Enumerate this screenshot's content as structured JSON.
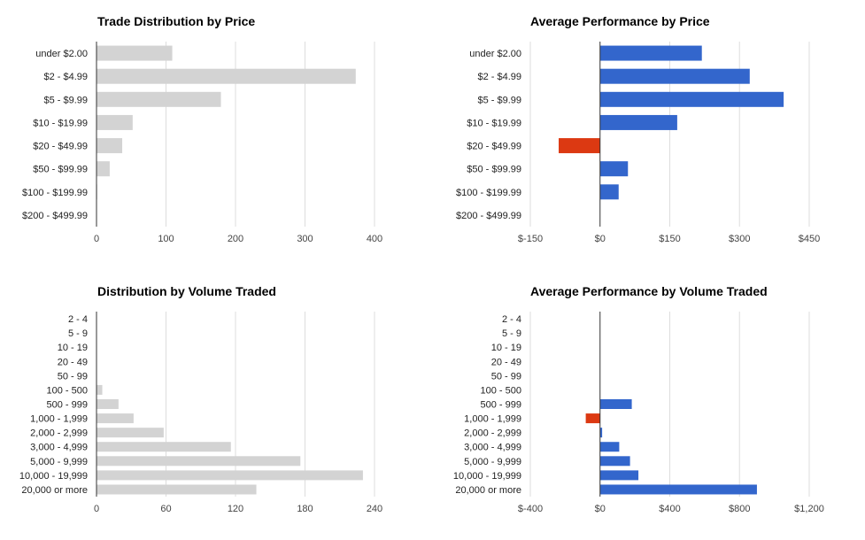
{
  "colors": {
    "neutral_bar": "#d3d3d3",
    "positive_bar": "#3366cc",
    "negative_bar": "#dc3912",
    "grid": "#dddddd",
    "axis": "#333333"
  },
  "chart_data": [
    {
      "type": "bar",
      "orientation": "horizontal",
      "title": "Trade Distribution by Price",
      "categories": [
        "under $2.00",
        "$2 - $4.99",
        "$5 - $9.99",
        "$10 - $19.99",
        "$20 - $49.99",
        "$50 - $99.99",
        "$100 - $199.99",
        "$200 - $499.99"
      ],
      "values": [
        109,
        373,
        179,
        52,
        37,
        19,
        1,
        0
      ],
      "xlim": [
        0,
        400
      ],
      "ticks": [
        0,
        100,
        200,
        300,
        400
      ],
      "tick_labels": [
        "0",
        "100",
        "200",
        "300",
        "400"
      ],
      "grid": true,
      "legend": "none"
    },
    {
      "type": "bar",
      "orientation": "horizontal",
      "title": "Average Performance by Price",
      "categories": [
        "under $2.00",
        "$2 - $4.99",
        "$5 - $9.99",
        "$10 - $19.99",
        "$20 - $49.99",
        "$50 - $99.99",
        "$100 - $199.99",
        "$200 - $499.99"
      ],
      "values": [
        219,
        322,
        395,
        166,
        -89,
        60,
        40,
        0
      ],
      "xlim": [
        -150,
        450
      ],
      "ticks": [
        -150,
        0,
        150,
        300,
        450
      ],
      "tick_labels": [
        "$-150",
        "$0",
        "$150",
        "$300",
        "$450"
      ],
      "grid": true,
      "legend": "none"
    },
    {
      "type": "bar",
      "orientation": "horizontal",
      "title": "Distribution by Volume Traded",
      "categories": [
        "2 - 4",
        "5 - 9",
        "10 - 19",
        "20 - 49",
        "50 - 99",
        "100 - 500",
        "500 - 999",
        "1,000 - 1,999",
        "2,000 - 2,999",
        "3,000 - 4,999",
        "5,000 - 9,999",
        "10,000 - 19,999",
        "20,000 or more"
      ],
      "values": [
        0,
        0,
        0,
        0,
        0,
        5,
        19,
        32,
        58,
        116,
        176,
        230,
        138
      ],
      "xlim": [
        0,
        240
      ],
      "ticks": [
        0,
        60,
        120,
        180,
        240
      ],
      "tick_labels": [
        "0",
        "60",
        "120",
        "180",
        "240"
      ],
      "grid": true,
      "legend": "none"
    },
    {
      "type": "bar",
      "orientation": "horizontal",
      "title": "Average Performance by Volume Traded",
      "categories": [
        "2 - 4",
        "5 - 9",
        "10 - 19",
        "20 - 49",
        "50 - 99",
        "100 - 500",
        "500 - 999",
        "1,000 - 1,999",
        "2,000 - 2,999",
        "3,000 - 4,999",
        "5,000 - 9,999",
        "10,000 - 19,999",
        "20,000 or more"
      ],
      "values": [
        0,
        0,
        0,
        0,
        0,
        0,
        182,
        -82,
        12,
        110,
        172,
        220,
        900
      ],
      "xlim": [
        -400,
        1200
      ],
      "ticks": [
        -400,
        0,
        400,
        800,
        1200
      ],
      "tick_labels": [
        "$-400",
        "$0",
        "$400",
        "$800",
        "$1,200"
      ],
      "grid": true,
      "legend": "none"
    }
  ]
}
